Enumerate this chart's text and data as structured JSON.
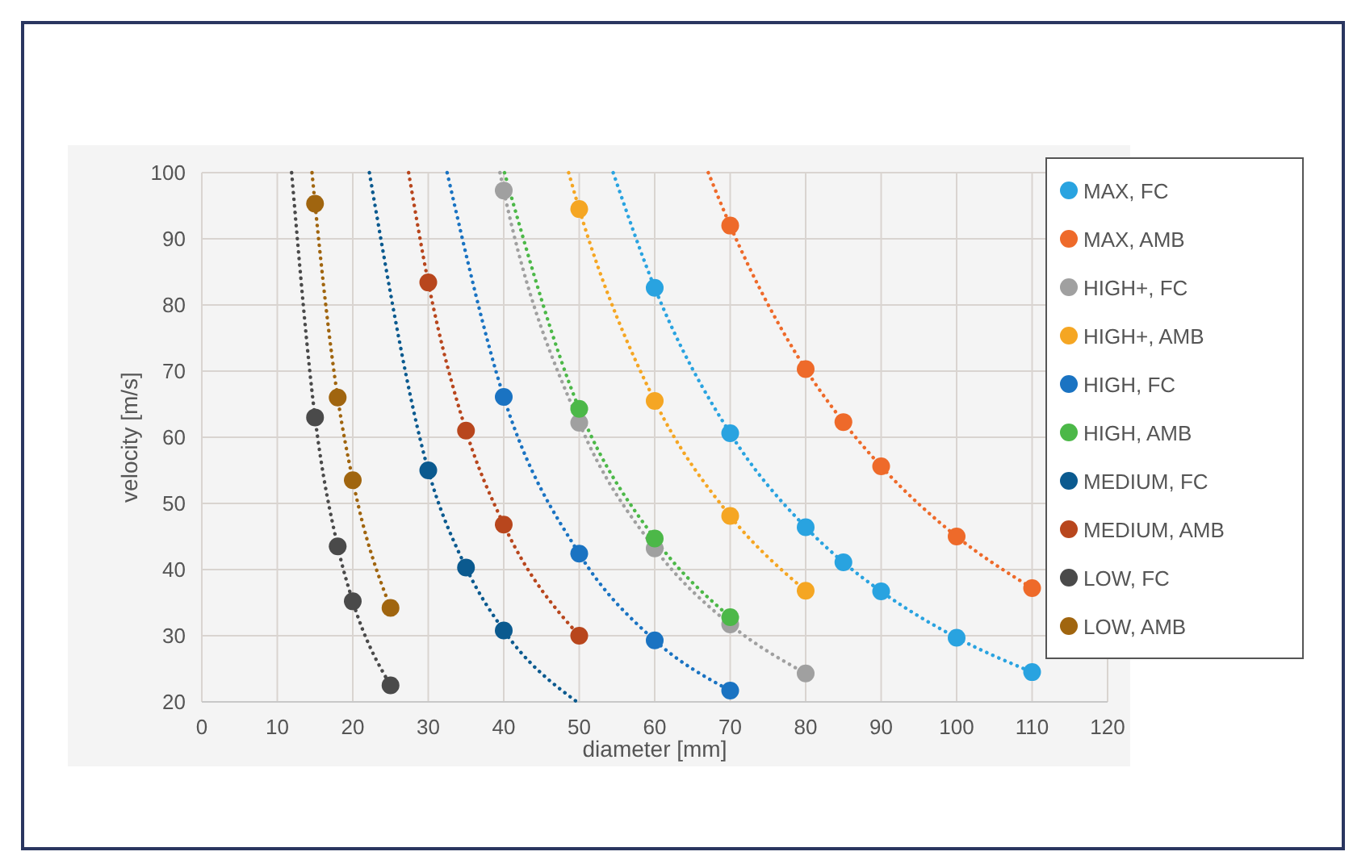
{
  "chart_data": {
    "type": "scatter",
    "xlabel": "diameter [mm]",
    "ylabel": "velocity [m/s]",
    "xlim": [
      0,
      120
    ],
    "ylim": [
      20,
      100
    ],
    "xticks": [
      0,
      10,
      20,
      30,
      40,
      50,
      60,
      70,
      80,
      90,
      100,
      110,
      120
    ],
    "yticks": [
      20,
      30,
      40,
      50,
      60,
      70,
      80,
      90,
      100
    ],
    "grid": true,
    "legend": "right",
    "marker": "circle",
    "line_style": "dotted",
    "series": [
      {
        "name": "MAX, FC",
        "color": "#29a3e0",
        "x": [
          60,
          70,
          80,
          85,
          90,
          100,
          110
        ],
        "values": [
          82.6,
          60.6,
          46.4,
          41.1,
          36.7,
          29.7,
          24.5
        ]
      },
      {
        "name": "MAX, AMB",
        "color": "#ee6a2a",
        "x": [
          70,
          80,
          85,
          90,
          100,
          110
        ],
        "values": [
          92,
          70.3,
          62.3,
          55.6,
          45,
          37.2
        ]
      },
      {
        "name": "HIGH+, FC",
        "color": "#a0a0a0",
        "x": [
          40,
          50,
          60,
          70,
          80
        ],
        "values": [
          97.3,
          62.2,
          43.2,
          31.7,
          24.3
        ]
      },
      {
        "name": "HIGH+, AMB",
        "color": "#f5a623",
        "x": [
          50,
          60,
          70,
          80
        ],
        "values": [
          94.5,
          65.5,
          48.1,
          36.8
        ]
      },
      {
        "name": "HIGH, FC",
        "color": "#1a73c2",
        "x": [
          40,
          50,
          60,
          70
        ],
        "values": [
          66.1,
          42.4,
          29.3,
          21.7
        ]
      },
      {
        "name": "HIGH, AMB",
        "color": "#4cb848",
        "x": [
          50,
          60,
          70
        ],
        "values": [
          64.3,
          44.7,
          32.8
        ]
      },
      {
        "name": "MEDIUM, FC",
        "color": "#0b5a8f",
        "x": [
          30,
          35,
          40
        ],
        "values": [
          55,
          40.3,
          30.8
        ]
      },
      {
        "name": "MEDIUM, AMB",
        "color": "#b8461d",
        "x": [
          30,
          35,
          40,
          50
        ],
        "values": [
          83.4,
          61,
          46.8,
          30
        ]
      },
      {
        "name": "LOW, FC",
        "color": "#4a4a4a",
        "x": [
          15,
          18,
          20,
          25
        ],
        "values": [
          63,
          43.5,
          35.2,
          22.5
        ]
      },
      {
        "name": "LOW, AMB",
        "color": "#a0650f",
        "x": [
          15,
          18,
          20,
          25
        ],
        "values": [
          95.3,
          66,
          53.5,
          34.2
        ]
      },
      {
        "type": "line",
        "marker": "none",
        "color": "#29a3e0",
        "x": [
          54.5,
          60,
          70,
          80,
          85,
          90,
          100,
          110
        ],
        "values": [
          100,
          82.6,
          60.6,
          46.4,
          41.1,
          36.7,
          29.7,
          24.5
        ]
      },
      {
        "type": "line",
        "marker": "none",
        "color": "#ee6a2a",
        "x": [
          67.1,
          70,
          80,
          85,
          90,
          100,
          110
        ],
        "values": [
          100,
          92,
          70.3,
          62.3,
          55.6,
          45,
          37.2
        ]
      },
      {
        "type": "line",
        "marker": "none",
        "color": "#a0a0a0",
        "x": [
          39.5,
          40,
          50,
          60,
          70,
          80
        ],
        "values": [
          100,
          97.3,
          62.2,
          43.2,
          31.7,
          24.3
        ]
      },
      {
        "type": "line",
        "marker": "none",
        "color": "#f5a623",
        "x": [
          48.6,
          50,
          60,
          70,
          80
        ],
        "values": [
          100,
          94.5,
          65.5,
          48.1,
          36.8
        ]
      },
      {
        "type": "line",
        "marker": "none",
        "color": "#1a73c2",
        "x": [
          32.5,
          40,
          50,
          60,
          70
        ],
        "values": [
          100,
          66.1,
          42.4,
          29.3,
          21.7
        ]
      },
      {
        "type": "line",
        "marker": "none",
        "color": "#4cb848",
        "x": [
          40.1,
          50,
          60,
          70
        ],
        "values": [
          100,
          64.3,
          44.7,
          32.8
        ]
      },
      {
        "type": "line",
        "marker": "none",
        "color": "#0b5a8f",
        "x": [
          22.2,
          30,
          35,
          40,
          49.7
        ],
        "values": [
          100,
          55,
          40.3,
          30.8,
          20
        ]
      },
      {
        "type": "line",
        "marker": "none",
        "color": "#b8461d",
        "x": [
          27.4,
          30,
          35,
          40,
          50
        ],
        "values": [
          100,
          83.4,
          61,
          46.8,
          30
        ]
      },
      {
        "type": "line",
        "marker": "none",
        "color": "#4a4a4a",
        "x": [
          11.9,
          15,
          18,
          20,
          25
        ],
        "values": [
          100,
          63,
          43.5,
          35.2,
          22.5
        ]
      },
      {
        "type": "line",
        "marker": "none",
        "color": "#a0650f",
        "x": [
          14.6,
          15,
          18,
          20,
          25
        ],
        "values": [
          100,
          95.3,
          66,
          53.5,
          34.2
        ]
      }
    ]
  }
}
